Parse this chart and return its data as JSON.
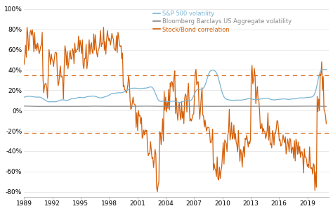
{
  "sp500_color": "#7ab4d4",
  "bb_color": "#888888",
  "corr_color": "#d4600a",
  "dashed_color": "#d4600a",
  "dashed_level_high": 0.35,
  "dashed_level_low": -0.22,
  "ylim": [
    -0.85,
    1.05
  ],
  "yticks": [
    -0.8,
    -0.6,
    -0.4,
    -0.2,
    0.0,
    0.2,
    0.4,
    0.6,
    0.8,
    1.0
  ],
  "ytick_labels": [
    "-80%",
    "-60%",
    "-40%",
    "-20%",
    "0%",
    "20%",
    "40%",
    "60%",
    "80%",
    "100%"
  ],
  "xtick_years": [
    1989,
    1992,
    1995,
    1998,
    2001,
    2004,
    2007,
    2010,
    2013,
    2016,
    2019
  ],
  "legend_labels": [
    "S&P 500 volatility",
    "Bloomberg Barclays US Aggregate volatility",
    "Stock/Bond correlation"
  ],
  "legend_colors": [
    "#7ab4d4",
    "#888888",
    "#d4600a"
  ],
  "bg_color": "#ffffff",
  "start_year": 1989.0,
  "end_year": 2021.0,
  "n_points": 400,
  "figwidth": 4.74,
  "figheight": 3.0,
  "dpi": 100
}
